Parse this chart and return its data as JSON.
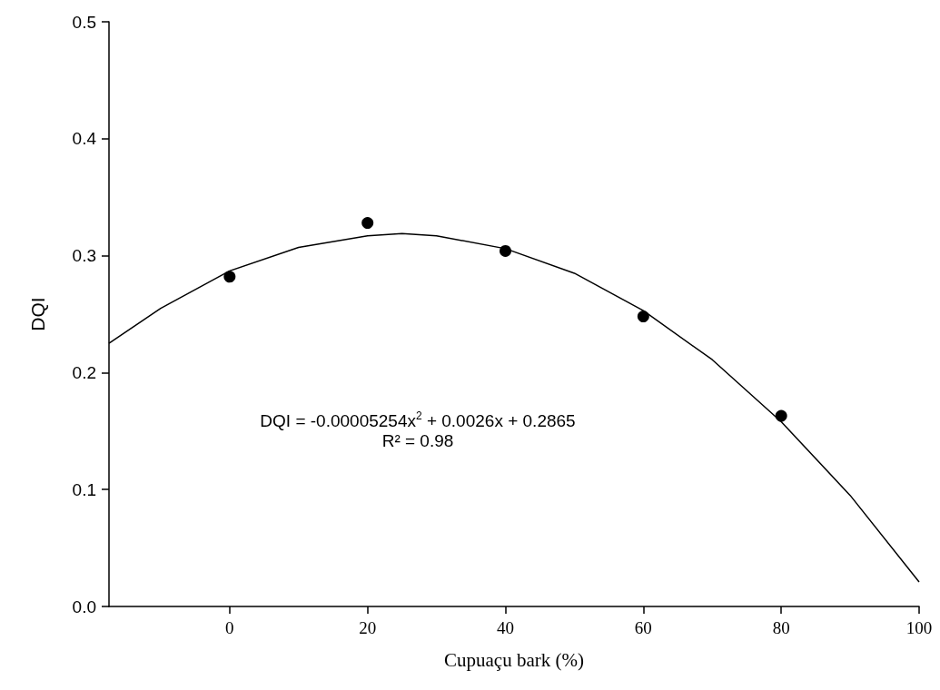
{
  "chart_data": {
    "type": "scatter",
    "xlabel": "Cupuaçu bark (%)",
    "ylabel": "DQI",
    "xlim": [
      -17.5,
      100
    ],
    "xticks": [
      0,
      20,
      40,
      60,
      80,
      100
    ],
    "ylim": [
      0,
      0.5
    ],
    "yticks": [
      {
        "value": 0,
        "label": "0.0"
      },
      0.1,
      0.2,
      0.3,
      0.4,
      0.5
    ],
    "grid": false,
    "marker": "circle",
    "annotations": [
      "DQI = -0.00005254x$^{2}$ + 0.0026x + 0.2865",
      "R² = 0.98"
    ],
    "series": [
      {
        "color": "#000000",
        "x": [
          0,
          20,
          40,
          60,
          80
        ],
        "values": [
          0.282,
          0.328,
          0.304,
          0.248,
          0.163
        ]
      },
      {
        "type": "line",
        "color": "#000000",
        "marker": "none",
        "line_style": "solid",
        "x": [
          -17.5,
          -10,
          0,
          10,
          20,
          25,
          30,
          40,
          50,
          60,
          70,
          80,
          90,
          100
        ],
        "values": [
          0.225,
          0.255,
          0.287,
          0.307,
          0.317,
          0.319,
          0.317,
          0.306,
          0.285,
          0.253,
          0.211,
          0.158,
          0.095,
          0.021
        ]
      }
    ]
  }
}
